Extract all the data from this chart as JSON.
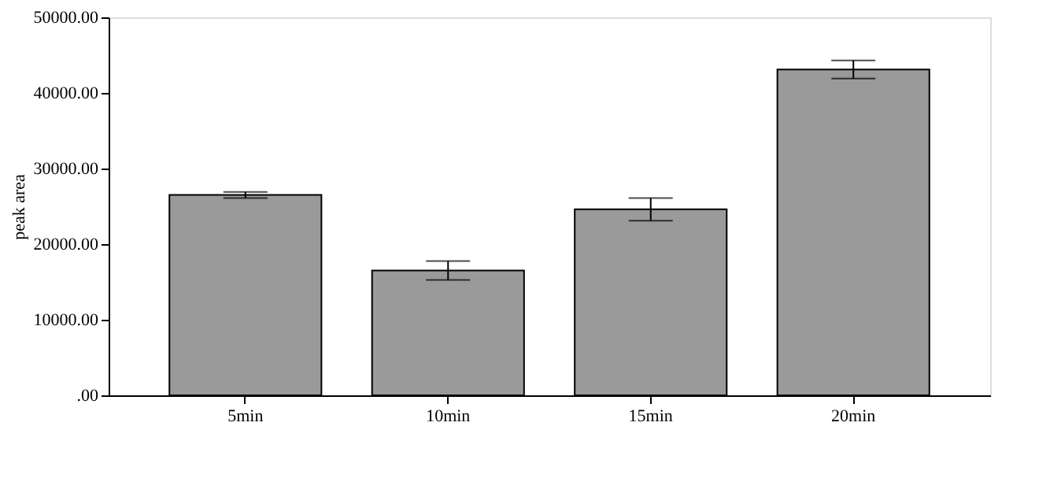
{
  "chart_data": {
    "type": "bar",
    "ylabel": "peak area",
    "categories": [
      "5min",
      "10min",
      "15min",
      "20min"
    ],
    "values": [
      26500,
      16500,
      24600,
      43100
    ],
    "errors": [
      400,
      1250,
      1500,
      1200
    ],
    "color": "#9a9a9a",
    "ylim": [
      0,
      50000
    ],
    "yticks": [
      {
        "value": 0,
        "label": ".00"
      },
      {
        "value": 10000,
        "label": "10000.00"
      },
      {
        "value": 20000,
        "label": "20000.00"
      },
      {
        "value": 30000,
        "label": "30000.00"
      },
      {
        "value": 40000,
        "label": "40000.00"
      },
      {
        "value": 50000,
        "label": "50000.00"
      }
    ],
    "grid": false
  }
}
